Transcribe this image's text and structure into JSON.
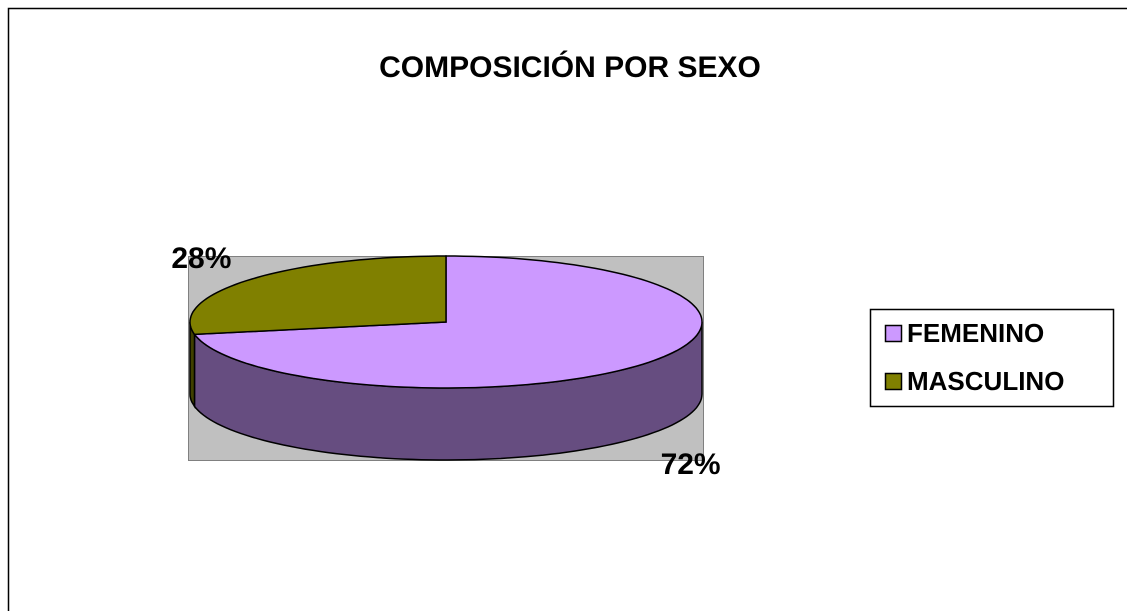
{
  "chart_data": {
    "type": "pie",
    "title": "COMPOSICIÓN POR SEXO",
    "categories": [
      "FEMENINO",
      "MASCULINO"
    ],
    "values": [
      72,
      28
    ],
    "value_labels": [
      "72%",
      "28%"
    ],
    "colors": [
      "#cc99ff",
      "#808000"
    ],
    "legend": "right"
  }
}
